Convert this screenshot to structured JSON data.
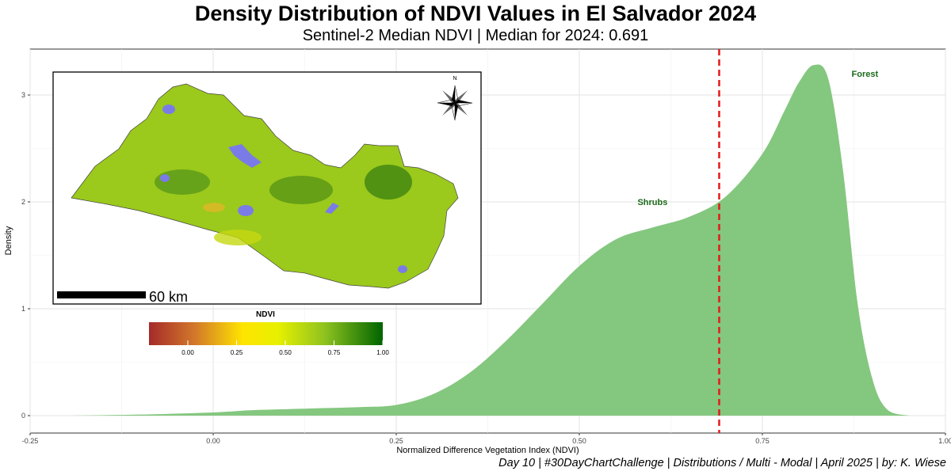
{
  "header": {
    "title": "Density Distribution of NDVI Values in El Salvador 2024",
    "subtitle": "Sentinel-2 Median NDVI | Median for 2024: 0.691"
  },
  "caption": "Day 10 | #30DayChartChallenge | Distributions / Multi - Modal | April 2025 | by: K. Wiese",
  "chart_data": {
    "type": "area",
    "xlabel": "Normalized Difference Vegetation Index (NDVI)",
    "ylabel": "Density",
    "xlim": [
      -0.25,
      1.0
    ],
    "ylim": [
      0,
      3.4
    ],
    "x_ticks": [
      -0.25,
      0.0,
      0.25,
      0.5,
      0.75,
      1.0
    ],
    "x_tick_labels": [
      "-0.25",
      "0.00",
      "0.25",
      "0.50",
      "0.75",
      "1.00"
    ],
    "y_ticks": [
      0,
      1,
      2,
      3
    ],
    "y_tick_labels": [
      "0",
      "1",
      "2",
      "3"
    ],
    "grid": true,
    "fill_color": "#84c77f",
    "series": [
      {
        "x": [
          -0.2,
          -0.1,
          0.0,
          0.05,
          0.1,
          0.15,
          0.2,
          0.25,
          0.3,
          0.35,
          0.4,
          0.45,
          0.5,
          0.55,
          0.6,
          0.65,
          0.7,
          0.75,
          0.78,
          0.8,
          0.82,
          0.84,
          0.86,
          0.88,
          0.9,
          0.92,
          0.95
        ],
        "y": [
          0.0,
          0.01,
          0.03,
          0.05,
          0.06,
          0.07,
          0.08,
          0.1,
          0.2,
          0.4,
          0.7,
          1.05,
          1.4,
          1.65,
          1.76,
          1.86,
          2.05,
          2.45,
          2.85,
          3.12,
          3.28,
          3.15,
          2.3,
          1.05,
          0.35,
          0.06,
          0.0
        ]
      }
    ],
    "median_line": {
      "x": 0.691,
      "color": "#e41a1c"
    },
    "annotations": [
      {
        "text": "Forest",
        "x": 0.89,
        "y": 3.2
      },
      {
        "text": "Shrubs",
        "x": 0.6,
        "y": 2.0
      }
    ],
    "inset_map": {
      "scale_label": "60 km",
      "north_label": "N",
      "water_color": "#7b7be8"
    },
    "colorbar": {
      "title": "NDVI",
      "ticks": [
        "0.00",
        "0.25",
        "0.50",
        "0.75",
        "1.00"
      ],
      "colors": [
        "#a52a2a",
        "#e0a030",
        "#ffff00",
        "#9acd32",
        "#006400"
      ]
    }
  }
}
